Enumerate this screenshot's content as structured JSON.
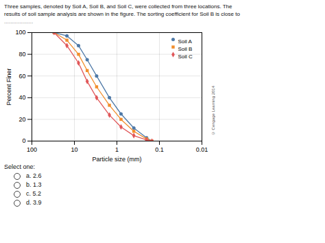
{
  "chart_data": {
    "type": "line",
    "title": [
      "Three samples, denoted by Soil A, Soil B, and Soil C, were collected from three locations. The",
      "results of soil sample analysis are shown in the figure. The sorting coefficient for Soil B is close to"
    ],
    "subtitle": "...................",
    "xlabel": "Particle size (mm)",
    "ylabel": "Percent Finer",
    "log": "x",
    "xlim": [
      100,
      0.01
    ],
    "ylim": [
      0,
      100
    ],
    "xticks": [
      100,
      10,
      1,
      0.1,
      0.01
    ],
    "yticks": [
      0,
      20,
      40,
      60,
      80,
      100
    ],
    "grid": true,
    "legend": "upper right",
    "x": [
      30,
      15,
      8,
      5,
      3,
      1.5,
      0.8,
      0.4,
      0.2,
      0.15
    ],
    "series": [
      {
        "name": "Soil A",
        "marker": "circle",
        "line_style": "solid",
        "values": [
          100,
          97,
          88,
          75,
          60,
          40,
          25,
          12,
          3,
          0
        ]
      },
      {
        "name": "Soil B",
        "marker": "square",
        "line_style": "solid",
        "values": [
          100,
          93,
          80,
          65,
          50,
          33,
          20,
          9,
          2,
          0
        ]
      },
      {
        "name": "Soil C",
        "marker": "diamond",
        "line_style": "solid",
        "values": [
          100,
          88,
          72,
          55,
          40,
          24,
          13,
          5,
          1,
          0
        ]
      }
    ],
    "annotations": [
      "© Cengage Learning 2014",
      "Select one:",
      "a. 2.6",
      "b. 1.3",
      "c. 5.2",
      "d. 3.9"
    ]
  }
}
